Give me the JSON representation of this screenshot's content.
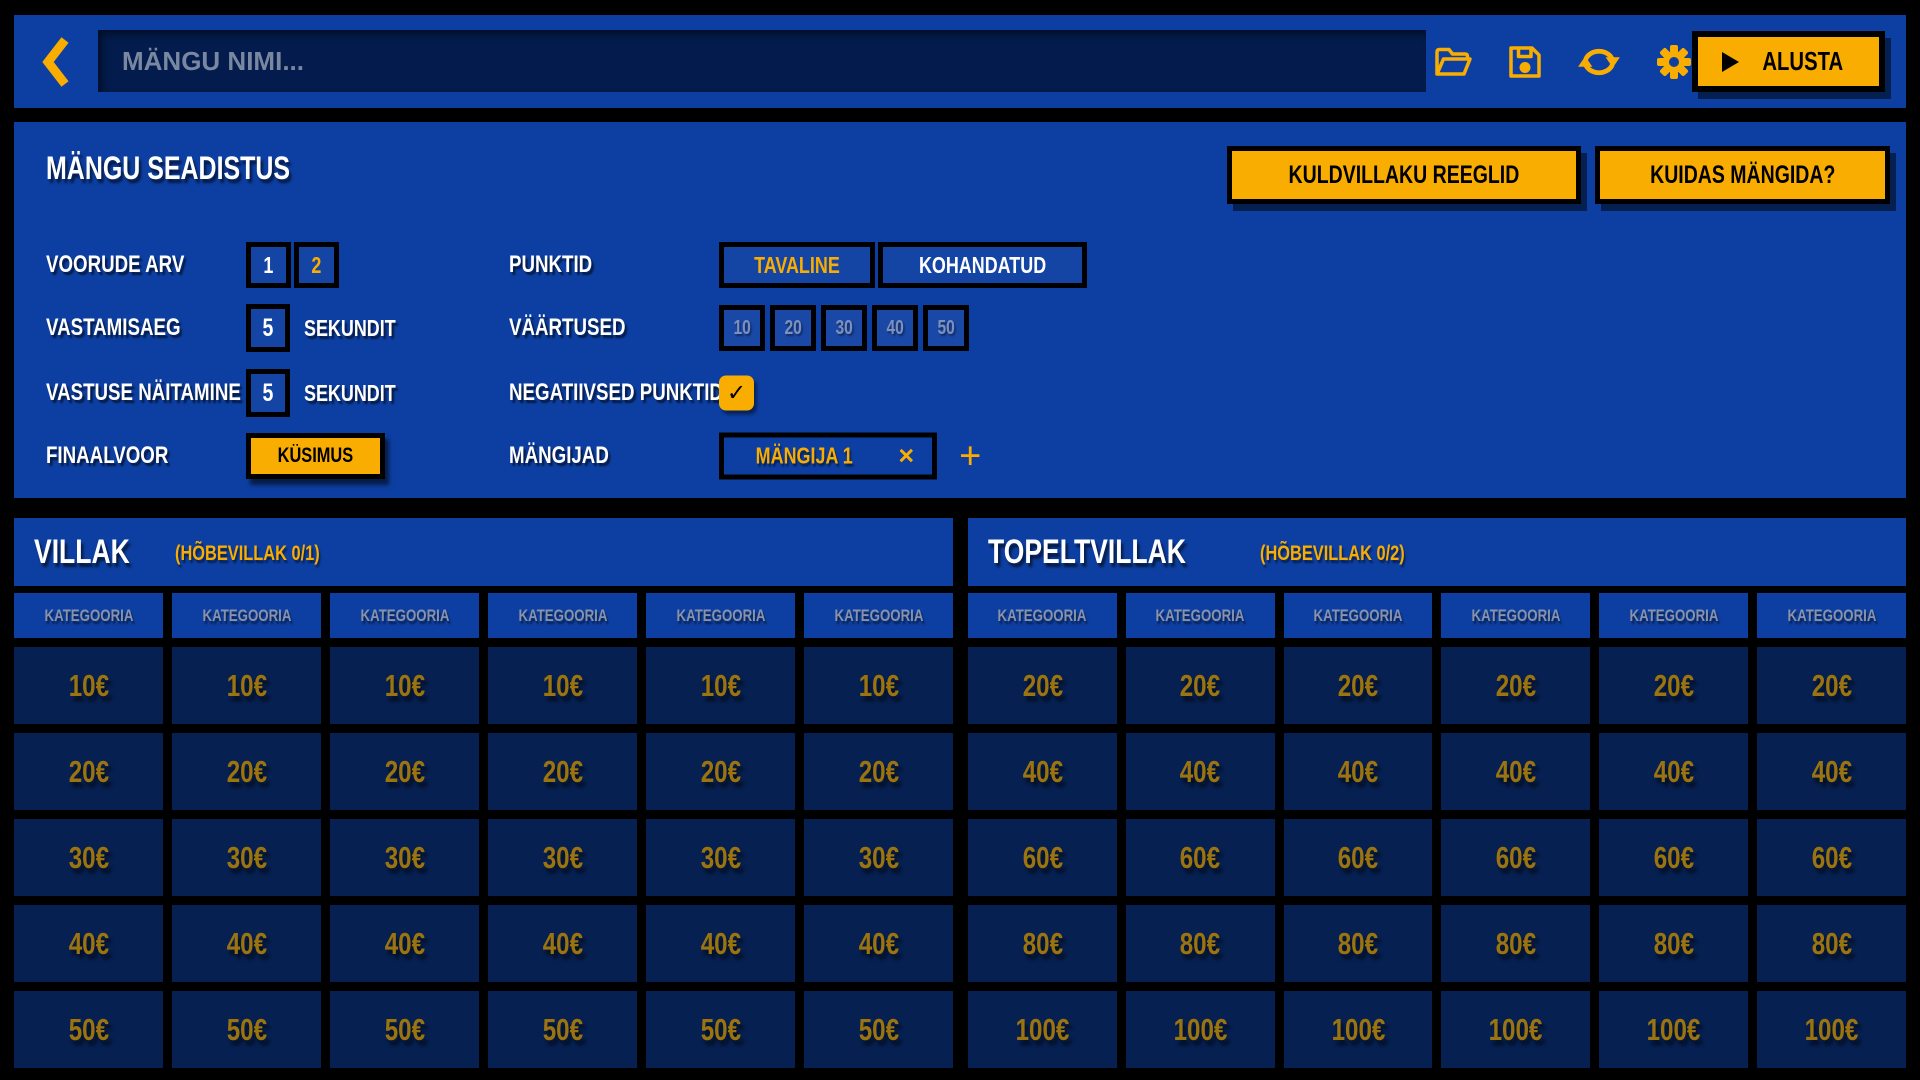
{
  "colors": {
    "accent": "#F9AD00",
    "panel_blue": "#0D3FA2",
    "input_navy": "#031C4D",
    "cell_navy": "#062051",
    "cell_value_text": "#9B7410",
    "category_text": "#8893AB",
    "disabled_chip_text": "#7C90BE",
    "background": "#000000"
  },
  "topbar": {
    "game_name_input": {
      "value": "",
      "placeholder": "MÄNGU NIMI..."
    },
    "start_button": {
      "label": "ALUSTA"
    }
  },
  "settings": {
    "title": "MÄNGU SEADISTUS",
    "rules_button_label": "KULDVILLAKU REEGLID",
    "how_to_play_button_label": "KUIDAS MÄNGIDA?",
    "rounds": {
      "label": "VOORUDE ARV",
      "options": [
        "1",
        "2"
      ],
      "selected": "2"
    },
    "points": {
      "label": "PUNKTID",
      "options": [
        "TAVALINE",
        "KOHANDATUD"
      ],
      "selected": "TAVALINE"
    },
    "answer_time": {
      "label": "VASTAMISAEG",
      "value": "5",
      "unit": "SEKUNDIT"
    },
    "point_values": {
      "label": "VÄÄRTUSED",
      "options": [
        "10",
        "20",
        "30",
        "40",
        "50"
      ],
      "enabled": false
    },
    "answer_reveal": {
      "label": "VASTUSE NÄITAMINE",
      "value": "5",
      "unit": "SEKUNDIT"
    },
    "negative_points": {
      "label": "NEGATIIVSED PUNKTID",
      "checked": true,
      "check_glyph": "✓"
    },
    "final_round": {
      "label": "FINAALVOOR",
      "button_label": "KÜSIMUS"
    },
    "players": {
      "label": "MÄNGIJAD",
      "items": [
        "MÄNGIJA 1"
      ],
      "remove_glyph": "×",
      "add_glyph": "+"
    }
  },
  "boards": [
    {
      "title": "VILLAK",
      "subtitle": "(HÕBEVILLAK 0/1)",
      "category_label": "KATEGOORIA",
      "columns": 6,
      "row_values": [
        "10€",
        "20€",
        "30€",
        "40€",
        "50€"
      ]
    },
    {
      "title": "TOPELTVILLAK",
      "subtitle": "(HÕBEVILLAK 0/2)",
      "category_label": "KATEGOORIA",
      "columns": 6,
      "row_values": [
        "20€",
        "40€",
        "60€",
        "80€",
        "100€"
      ]
    }
  ]
}
